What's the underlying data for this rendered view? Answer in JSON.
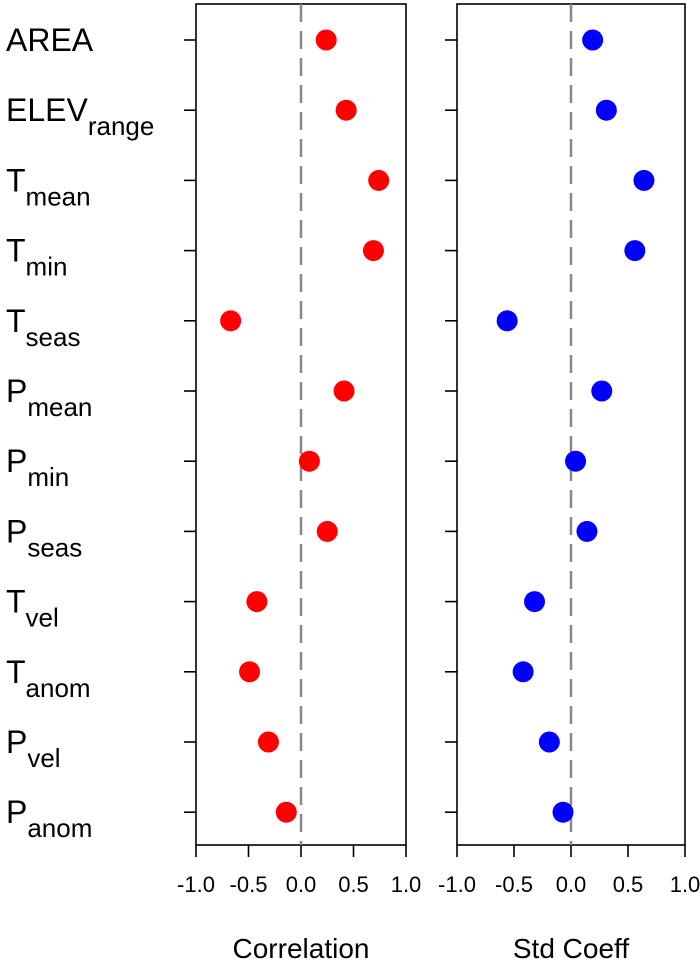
{
  "colors": {
    "corr": "#ff0000",
    "std": "#0000ff",
    "zero_line": "#888888",
    "frame": "#000000"
  },
  "chart_data": {
    "type": "scatter",
    "variables": [
      {
        "main": "AREA",
        "sub": ""
      },
      {
        "main": "ELEV",
        "sub": "range"
      },
      {
        "main": "T",
        "sub": "mean"
      },
      {
        "main": "T",
        "sub": "min"
      },
      {
        "main": "T",
        "sub": "seas"
      },
      {
        "main": "P",
        "sub": "mean"
      },
      {
        "main": "P",
        "sub": "min"
      },
      {
        "main": "P",
        "sub": "seas"
      },
      {
        "main": "T",
        "sub": "vel"
      },
      {
        "main": "T",
        "sub": "anom"
      },
      {
        "main": "P",
        "sub": "vel"
      },
      {
        "main": "P",
        "sub": "anom"
      }
    ],
    "panels": [
      {
        "xlabel": "Correlation",
        "xlim": [
          -1.0,
          1.0
        ],
        "ticks": [
          "-1.0",
          "-0.5",
          "0.0",
          "0.5",
          "1.0"
        ],
        "tick_values": [
          -1.0,
          -0.5,
          0.0,
          0.5,
          1.0
        ],
        "color_key": "corr",
        "values": [
          0.24,
          0.43,
          0.74,
          0.69,
          -0.67,
          0.41,
          0.08,
          0.25,
          -0.42,
          -0.49,
          -0.31,
          -0.14
        ]
      },
      {
        "xlabel": "Std Coeff",
        "xlim": [
          -1.0,
          1.0
        ],
        "ticks": [
          "-1.0",
          "-0.5",
          "0.0",
          "0.5",
          "1.0"
        ],
        "tick_values": [
          -1.0,
          -0.5,
          0.0,
          0.5,
          1.0
        ],
        "color_key": "std",
        "values": [
          0.19,
          0.31,
          0.64,
          0.56,
          -0.56,
          0.27,
          0.04,
          0.14,
          -0.32,
          -0.42,
          -0.19,
          -0.07
        ]
      }
    ]
  }
}
